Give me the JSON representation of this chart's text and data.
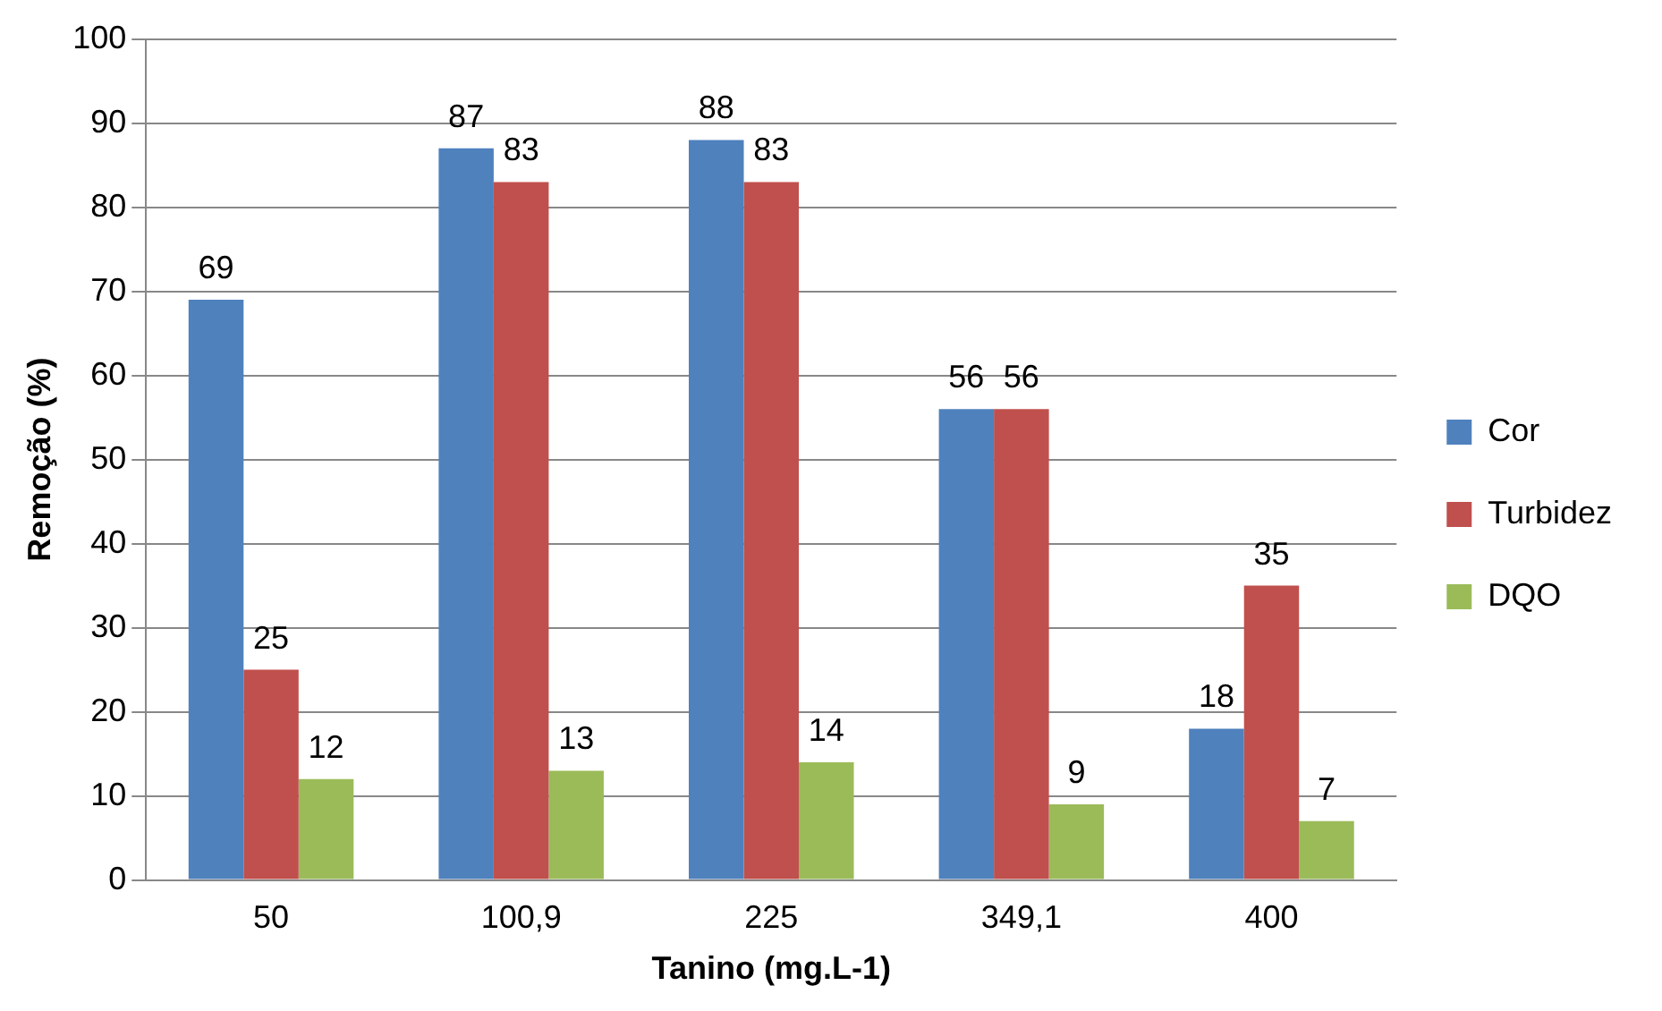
{
  "chart_data": {
    "type": "bar",
    "xlabel": "Tanino (mg.L-1)",
    "ylabel": "Remoção (%)",
    "categories": [
      "50",
      "100,9",
      "225",
      "349,1",
      "400"
    ],
    "series": [
      {
        "name": "Cor",
        "color": "#4f81bd",
        "values": [
          69,
          87,
          88,
          56,
          18
        ]
      },
      {
        "name": "Turbidez",
        "color": "#c0504d",
        "values": [
          25,
          83,
          83,
          56,
          35
        ]
      },
      {
        "name": "DQO",
        "color": "#9bbb59",
        "values": [
          12,
          13,
          14,
          9,
          7
        ]
      }
    ],
    "ylim": [
      0,
      100
    ],
    "yticks": [
      0,
      10,
      20,
      30,
      40,
      50,
      60,
      70,
      80,
      90,
      100
    ],
    "grid": "y",
    "legend": "right",
    "data_labels": true
  }
}
